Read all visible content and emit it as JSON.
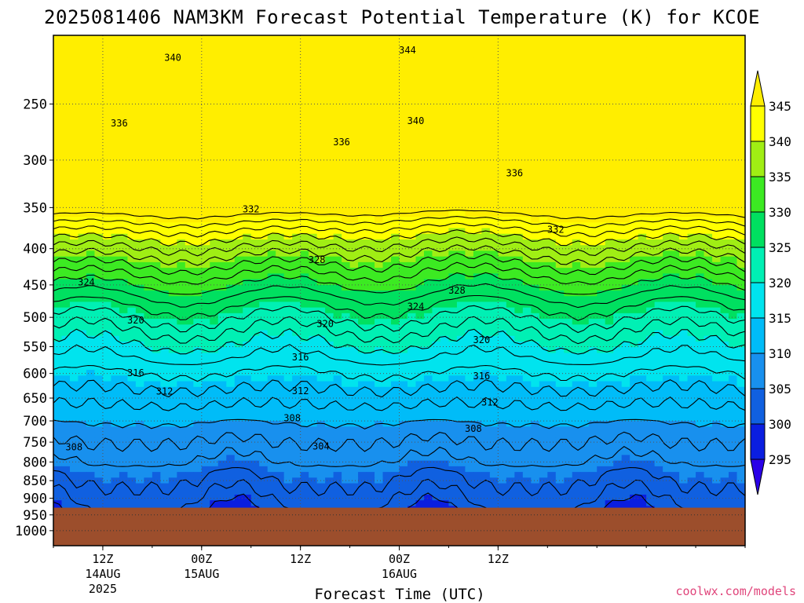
{
  "title": "2025081406 NAM3KM Forecast Potential Temperature (K) for KCOE",
  "xlabel": "Forecast Time (UTC)",
  "credit": "coolwx.com/models",
  "chart_data": {
    "type": "heatmap",
    "title": "2025081406 NAM3KM Forecast Potential Temperature (K) for KCOE",
    "xlabel": "Forecast Time (UTC)",
    "ylabel": "",
    "y_scale": "log",
    "y_reversed": true,
    "ylim": [
      1050,
      200
    ],
    "xlim_hours": [
      0,
      84
    ],
    "pressure_ticks": [
      250,
      300,
      350,
      400,
      450,
      500,
      550,
      600,
      650,
      700,
      750,
      800,
      850,
      900,
      950,
      1000
    ],
    "x_ticks": [
      {
        "hour": 6,
        "label": "12Z",
        "sub1": "14AUG",
        "sub2": "2025"
      },
      {
        "hour": 18,
        "label": "00Z",
        "sub1": "15AUG",
        "sub2": ""
      },
      {
        "hour": 30,
        "label": "12Z",
        "sub1": "",
        "sub2": ""
      },
      {
        "hour": 42,
        "label": "00Z",
        "sub1": "16AUG",
        "sub2": ""
      },
      {
        "hour": 54,
        "label": "12Z",
        "sub1": "",
        "sub2": ""
      }
    ],
    "grid": true,
    "surface_pressure": 928,
    "surface_color": "#9c4e2c",
    "colorbar": {
      "levels": [
        295,
        300,
        305,
        310,
        315,
        320,
        325,
        330,
        335,
        340,
        345
      ],
      "colors": [
        "#2a00e8",
        "#0a1ee0",
        "#1060e0",
        "#1890ee",
        "#00bcf8",
        "#00e4ee",
        "#00f0b4",
        "#00e060",
        "#3cea22",
        "#a0ee14",
        "#ffff00",
        "#ffee00"
      ],
      "extend": "both"
    },
    "contour_interval": 2,
    "contour_labels": [
      {
        "hour": 14.5,
        "p": 215,
        "value": "340"
      },
      {
        "hour": 43,
        "p": 210,
        "value": "344"
      },
      {
        "hour": 8,
        "p": 266,
        "value": "336"
      },
      {
        "hour": 35,
        "p": 283,
        "value": "336"
      },
      {
        "hour": 44,
        "p": 264,
        "value": "340"
      },
      {
        "hour": 56,
        "p": 313,
        "value": "336"
      },
      {
        "hour": 24,
        "p": 352,
        "value": "332"
      },
      {
        "hour": 61,
        "p": 376,
        "value": "332"
      },
      {
        "hour": 32,
        "p": 415,
        "value": "328"
      },
      {
        "hour": 49,
        "p": 458,
        "value": "328"
      },
      {
        "hour": 4,
        "p": 446,
        "value": "324"
      },
      {
        "hour": 44,
        "p": 483,
        "value": "324"
      },
      {
        "hour": 10,
        "p": 505,
        "value": "320"
      },
      {
        "hour": 33,
        "p": 511,
        "value": "320"
      },
      {
        "hour": 52,
        "p": 538,
        "value": "320"
      },
      {
        "hour": 10,
        "p": 599,
        "value": "316"
      },
      {
        "hour": 30,
        "p": 569,
        "value": "316"
      },
      {
        "hour": 52,
        "p": 605,
        "value": "316"
      },
      {
        "hour": 13.5,
        "p": 636,
        "value": "312"
      },
      {
        "hour": 30,
        "p": 635,
        "value": "312"
      },
      {
        "hour": 53,
        "p": 659,
        "value": "312"
      },
      {
        "hour": 2.5,
        "p": 762,
        "value": "308"
      },
      {
        "hour": 29,
        "p": 694,
        "value": "308"
      },
      {
        "hour": 51,
        "p": 718,
        "value": "308"
      },
      {
        "hour": 32.5,
        "p": 760,
        "value": "304"
      }
    ]
  }
}
